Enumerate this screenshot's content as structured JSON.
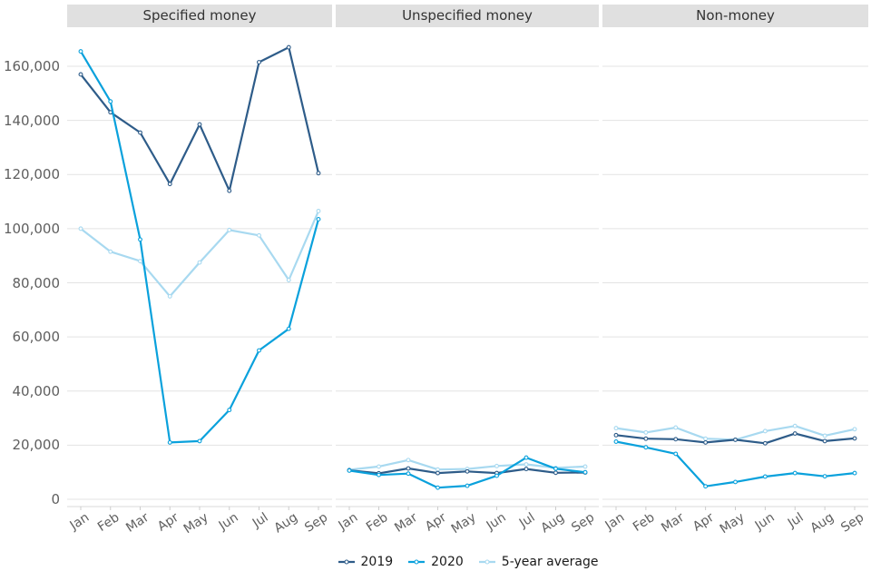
{
  "chart_data": {
    "type": "line",
    "title": "",
    "xlabel": "",
    "ylabel": "",
    "categories": [
      "Jan",
      "Feb",
      "Mar",
      "Apr",
      "May",
      "Jun",
      "Jul",
      "Aug",
      "Sep"
    ],
    "y_ticks": [
      0,
      20000,
      40000,
      60000,
      80000,
      100000,
      120000,
      140000,
      160000
    ],
    "y_tick_labels": [
      "0",
      "20,000",
      "40,000",
      "60,000",
      "80,000",
      "100,000",
      "120,000",
      "140,000",
      "160,000"
    ],
    "ylim": [
      0,
      174500
    ],
    "grid": true,
    "legend_position": "bottom",
    "series_meta": [
      {
        "name": "2019",
        "color": "#2e5c89"
      },
      {
        "name": "2020",
        "color": "#0aa1dc"
      },
      {
        "name": "5-year average",
        "color": "#a8d9f0"
      }
    ],
    "facets": [
      {
        "label": "Specified money",
        "series": [
          {
            "name": "2019",
            "values": [
              157000,
              143000,
              135500,
              116500,
              138500,
              114000,
              161500,
              167000,
              120500
            ]
          },
          {
            "name": "2020",
            "values": [
              165500,
              147000,
              96000,
              21000,
              21500,
              33000,
              55000,
              63000,
              103500
            ]
          },
          {
            "name": "5-year average",
            "values": [
              100000,
              91500,
              88000,
              75000,
              87500,
              99500,
              97500,
              81000,
              106500
            ]
          }
        ]
      },
      {
        "label": "Unspecified money",
        "series": [
          {
            "name": "2019",
            "values": [
              10700,
              9600,
              11400,
              9700,
              10300,
              9700,
              11200,
              9800,
              9900
            ]
          },
          {
            "name": "2020",
            "values": [
              10600,
              9000,
              9500,
              4300,
              5000,
              8700,
              15400,
              11300,
              10000
            ]
          },
          {
            "name": "5-year average",
            "values": [
              10900,
              12100,
              14500,
              11000,
              11200,
              12300,
              12900,
              11600,
              12100
            ]
          }
        ]
      },
      {
        "label": "Non-money",
        "series": [
          {
            "name": "2019",
            "values": [
              23700,
              22400,
              22200,
              21000,
              22000,
              20700,
              24300,
              21500,
              22500
            ]
          },
          {
            "name": "2020",
            "values": [
              21300,
              19200,
              16800,
              4800,
              6400,
              8400,
              9700,
              8500,
              9700
            ]
          },
          {
            "name": "5-year average",
            "values": [
              26300,
              24700,
              26500,
              22400,
              22000,
              25200,
              27100,
              23500,
              25900
            ]
          }
        ]
      }
    ]
  },
  "styles": {
    "grid_color": "#e3e3e3",
    "axis_line_color": "#d9d9d9",
    "tick_mark_color": "#cccccc",
    "axis_text_color": "#5f5f5f",
    "header_bg": "#e0e0e0",
    "header_text": "#333333",
    "marker_fill": "#ffffff"
  }
}
